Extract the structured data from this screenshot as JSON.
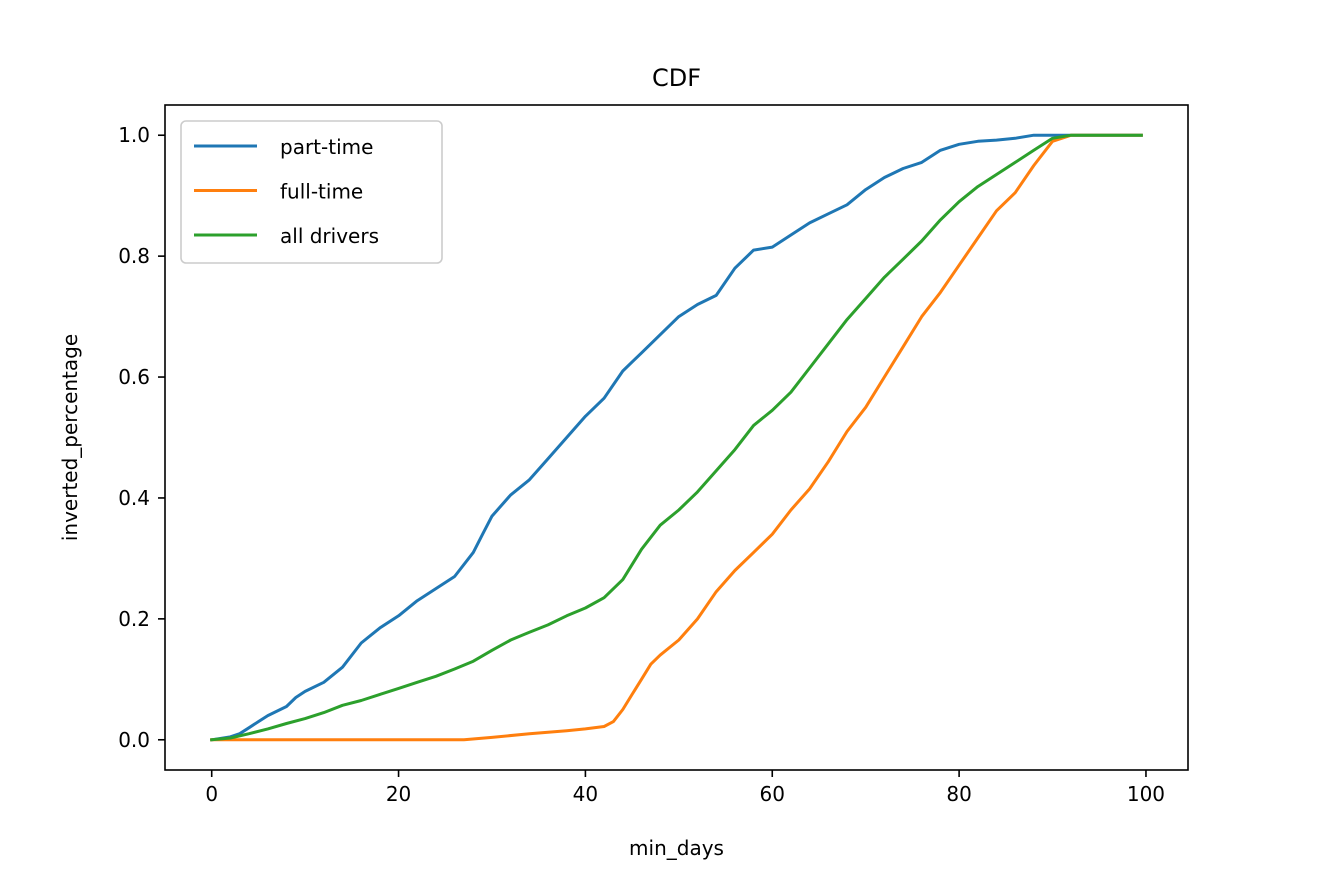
{
  "chart_data": {
    "type": "line",
    "title": "CDF",
    "xlabel": "min_days",
    "ylabel": "inverted_percentage",
    "xlim": [
      -5,
      104.5
    ],
    "ylim": [
      -0.05,
      1.05
    ],
    "xticks": [
      0,
      20,
      40,
      60,
      80,
      100
    ],
    "xtick_labels": [
      "0",
      "20",
      "40",
      "60",
      "80",
      "100"
    ],
    "yticks": [
      0.0,
      0.2,
      0.4,
      0.6,
      0.8,
      1.0
    ],
    "ytick_labels": [
      "0.0",
      "0.2",
      "0.4",
      "0.6",
      "0.8",
      "1.0"
    ],
    "grid": false,
    "legend_position": "upper-left",
    "series": [
      {
        "name": "part-time",
        "color": "#1f77b4",
        "x": [
          0,
          2,
          3,
          4,
          5,
          6,
          8,
          9,
          10,
          12,
          14,
          16,
          18,
          20,
          22,
          24,
          26,
          28,
          29,
          30,
          32,
          34,
          36,
          38,
          40,
          42,
          44,
          46,
          48,
          50,
          52,
          54,
          56,
          58,
          60,
          62,
          64,
          66,
          68,
          70,
          72,
          74,
          76,
          78,
          80,
          82,
          84,
          86,
          88,
          90,
          92,
          99.5
        ],
        "y": [
          0.0,
          0.005,
          0.01,
          0.02,
          0.03,
          0.04,
          0.055,
          0.07,
          0.08,
          0.095,
          0.12,
          0.16,
          0.185,
          0.205,
          0.23,
          0.25,
          0.27,
          0.31,
          0.34,
          0.37,
          0.405,
          0.43,
          0.465,
          0.5,
          0.535,
          0.565,
          0.61,
          0.64,
          0.67,
          0.7,
          0.72,
          0.735,
          0.78,
          0.81,
          0.815,
          0.835,
          0.855,
          0.87,
          0.885,
          0.91,
          0.93,
          0.945,
          0.955,
          0.975,
          0.985,
          0.99,
          0.992,
          0.995,
          1.0,
          1.0,
          1.0,
          1.0
        ]
      },
      {
        "name": "full-time",
        "color": "#ff7f0e",
        "x": [
          0,
          10,
          20,
          27,
          30,
          34,
          38,
          40,
          42,
          43,
          44,
          45,
          46,
          47,
          48,
          50,
          52,
          54,
          56,
          58,
          60,
          62,
          64,
          66,
          68,
          70,
          72,
          74,
          76,
          78,
          80,
          82,
          84,
          86,
          88,
          90,
          92,
          99.5
        ],
        "y": [
          0.0,
          0.0,
          0.0,
          0.0,
          0.004,
          0.01,
          0.015,
          0.018,
          0.022,
          0.03,
          0.05,
          0.075,
          0.1,
          0.125,
          0.14,
          0.165,
          0.2,
          0.245,
          0.28,
          0.31,
          0.34,
          0.38,
          0.415,
          0.46,
          0.51,
          0.55,
          0.6,
          0.65,
          0.7,
          0.74,
          0.785,
          0.83,
          0.875,
          0.905,
          0.95,
          0.99,
          1.0,
          1.0
        ]
      },
      {
        "name": "all drivers",
        "color": "#2ca02c",
        "x": [
          0,
          2,
          4,
          6,
          8,
          10,
          12,
          14,
          16,
          18,
          20,
          22,
          24,
          26,
          28,
          30,
          32,
          34,
          36,
          38,
          40,
          42,
          44,
          46,
          48,
          50,
          52,
          54,
          56,
          58,
          60,
          62,
          64,
          66,
          68,
          70,
          72,
          74,
          76,
          78,
          80,
          82,
          84,
          86,
          88,
          90,
          92,
          99.5
        ],
        "y": [
          0.0,
          0.003,
          0.01,
          0.018,
          0.027,
          0.035,
          0.045,
          0.057,
          0.065,
          0.075,
          0.085,
          0.095,
          0.105,
          0.117,
          0.13,
          0.148,
          0.165,
          0.178,
          0.19,
          0.205,
          0.218,
          0.235,
          0.265,
          0.315,
          0.355,
          0.38,
          0.41,
          0.445,
          0.48,
          0.52,
          0.545,
          0.575,
          0.615,
          0.655,
          0.695,
          0.73,
          0.765,
          0.795,
          0.825,
          0.86,
          0.89,
          0.915,
          0.935,
          0.955,
          0.975,
          0.995,
          1.0,
          1.0
        ]
      }
    ]
  }
}
